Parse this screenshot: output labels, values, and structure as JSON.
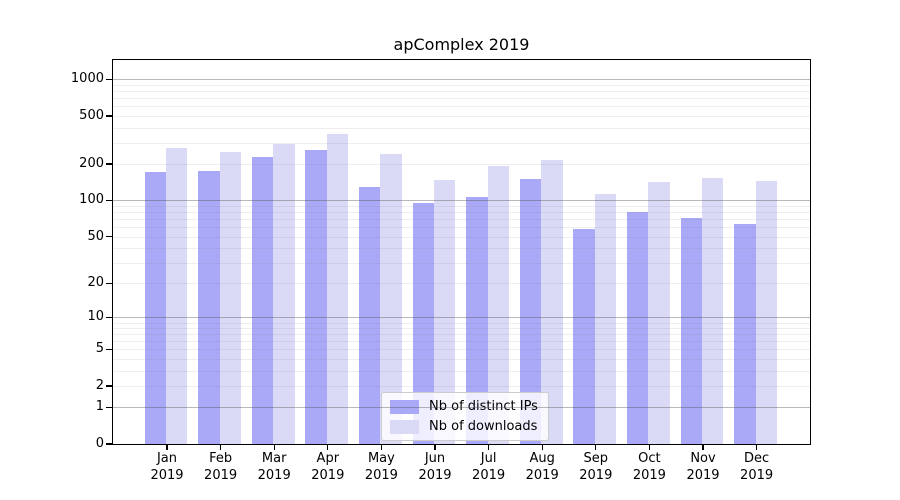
{
  "chart_data": {
    "type": "bar",
    "title": "apComplex 2019",
    "categories": [
      "Jan 2019",
      "Feb 2019",
      "Mar 2019",
      "Apr 2019",
      "May 2019",
      "Jun 2019",
      "Jul 2019",
      "Aug 2019",
      "Sep 2019",
      "Oct 2019",
      "Nov 2019",
      "Dec 2019"
    ],
    "series": [
      {
        "name": "Nb of distinct IPs",
        "color": "#a9a9f7",
        "values": [
          172,
          176,
          230,
          260,
          130,
          95,
          106,
          150,
          58,
          80,
          72,
          64
        ]
      },
      {
        "name": "Nb of downloads",
        "color": "#dadaf7",
        "values": [
          272,
          252,
          295,
          354,
          242,
          149,
          193,
          217,
          114,
          141,
          154,
          145
        ]
      }
    ],
    "y_ticks": [
      0,
      1,
      2,
      5,
      10,
      20,
      50,
      100,
      200,
      500,
      1000
    ],
    "y_scale": "log1p",
    "ylim": [
      0,
      1450
    ],
    "xlabel": "",
    "ylabel": "",
    "grid": true,
    "legend_position": "lower-center"
  }
}
